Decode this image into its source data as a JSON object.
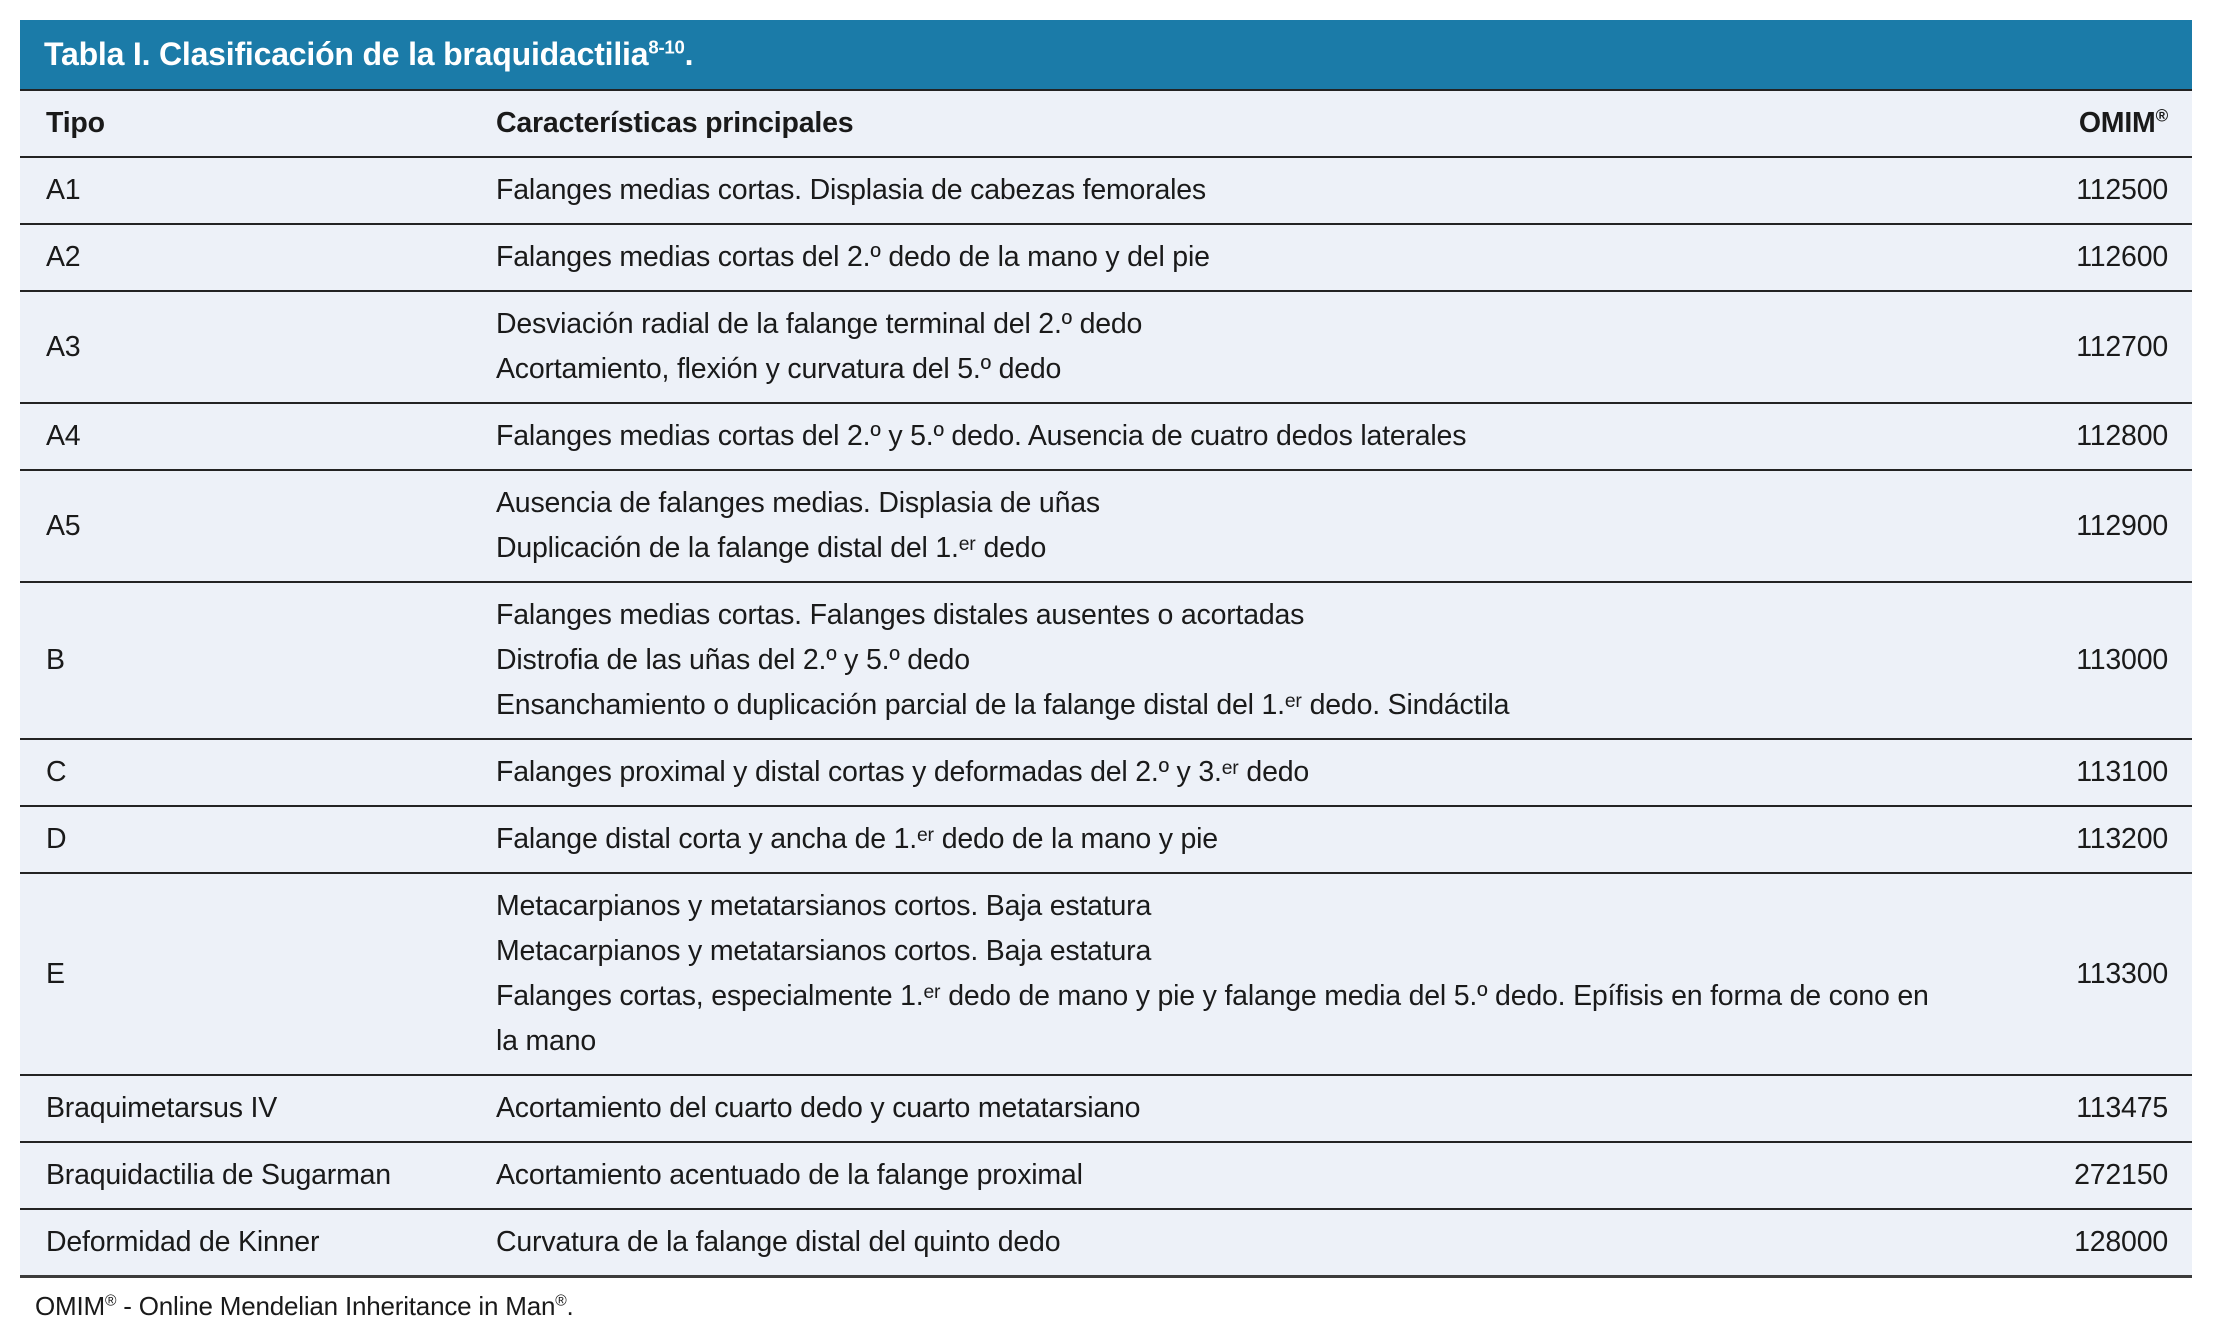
{
  "title_bar": {
    "title": "Tabla I. Clasificación de la braquidactilia",
    "citation": "8-10",
    "suffix": "."
  },
  "table": {
    "columns": {
      "tipo": "Tipo",
      "caracteristicas": "Características principales",
      "omim": "OMIM",
      "omim_sup": "®"
    },
    "rows": [
      {
        "tipo": "A1",
        "caracteristicas": [
          "Falanges medias cortas. Displasia de cabezas femorales"
        ],
        "omim": "112500"
      },
      {
        "tipo": "A2",
        "caracteristicas": [
          "Falanges medias cortas del 2.º dedo de la mano y del pie"
        ],
        "omim": "112600"
      },
      {
        "tipo": "A3",
        "caracteristicas": [
          "Desviación radial de la falange terminal del 2.º dedo",
          "Acortamiento, flexión y curvatura del 5.º dedo"
        ],
        "omim": "112700"
      },
      {
        "tipo": "A4",
        "caracteristicas": [
          "Falanges medias cortas del 2.º y 5.º dedo. Ausencia de cuatro dedos laterales"
        ],
        "omim": "112800"
      },
      {
        "tipo": "A5",
        "caracteristicas": [
          "Ausencia de falanges medias. Displasia de uñas",
          "Duplicación de la falange distal del 1.ᵉʳ dedo"
        ],
        "omim": "112900"
      },
      {
        "tipo": "B",
        "caracteristicas": [
          "Falanges medias cortas. Falanges distales ausentes o acortadas",
          "Distrofia de las uñas del 2.º y 5.º dedo",
          "Ensanchamiento o duplicación parcial de la falange distal del 1.ᵉʳ dedo. Sindáctila"
        ],
        "omim": "113000"
      },
      {
        "tipo": "C",
        "caracteristicas": [
          "Falanges proximal y distal cortas y deformadas del 2.º y 3.ᵉʳ dedo"
        ],
        "omim": "113100"
      },
      {
        "tipo": "D",
        "caracteristicas": [
          "Falange distal corta y ancha de 1.ᵉʳ dedo de la mano y pie"
        ],
        "omim": "113200"
      },
      {
        "tipo": "E",
        "caracteristicas": [
          "Metacarpianos y metatarsianos cortos. Baja estatura",
          "Metacarpianos y metatarsianos cortos. Baja estatura",
          "Falanges cortas, especialmente 1.ᵉʳ dedo de mano y pie y falange media del 5.º dedo. Epífisis en forma de cono en la mano"
        ],
        "omim": "113300"
      },
      {
        "tipo": "Braquimetarsus IV",
        "caracteristicas": [
          "Acortamiento del cuarto dedo y cuarto metatarsiano"
        ],
        "omim": "113475"
      },
      {
        "tipo": "Braquidactilia de Sugarman",
        "caracteristicas": [
          "Acortamiento acentuado de la falange proximal"
        ],
        "omim": "272150"
      },
      {
        "tipo": "Deformidad de Kinner",
        "caracteristicas": [
          "Curvatura de la falange distal del quinto dedo"
        ],
        "omim": "128000"
      }
    ]
  },
  "footnote": {
    "omim": "OMIM",
    "reg1": "®",
    "text": " - Online Mendelian Inheritance in Man",
    "reg2": "®",
    "period": "."
  },
  "colors": {
    "header_blue": "#1b7ba8",
    "row_bg": "#edf1f8",
    "divider": "#232323",
    "text": "#1a1a1a"
  }
}
